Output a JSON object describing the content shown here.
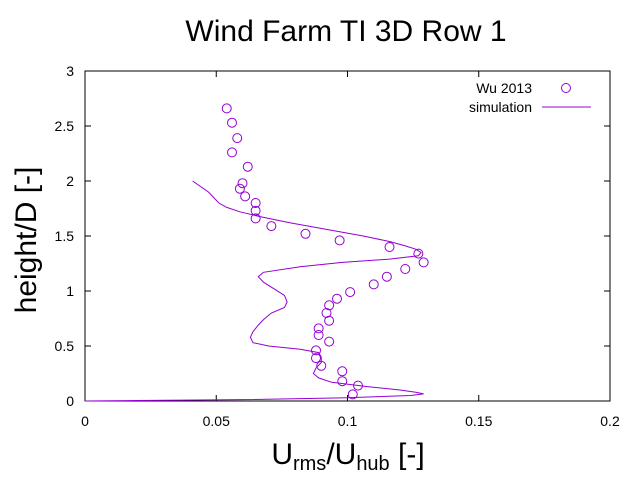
{
  "chart_data": {
    "type": "line",
    "title": "Wind Farm TI 3D Row 1",
    "xlabel": {
      "base1": "U",
      "sub1": "rms",
      "mid": "/U",
      "sub2": "hub",
      "tail": " [-]"
    },
    "ylabel": "height/D [-]",
    "xlim": [
      0,
      0.2
    ],
    "ylim": [
      0,
      3
    ],
    "xticks": [
      "0",
      "0.05",
      "0.1",
      "0.15",
      "0.2"
    ],
    "yticks": [
      "0",
      "0.5",
      "1",
      "1.5",
      "2",
      "2.5",
      "3"
    ],
    "grid": false,
    "legend_position": "top-right",
    "series": [
      {
        "name": "Wu 2013",
        "style": "points",
        "color": "#9400d3",
        "points": [
          [
            0.054,
            2.66
          ],
          [
            0.056,
            2.53
          ],
          [
            0.058,
            2.39
          ],
          [
            0.056,
            2.26
          ],
          [
            0.062,
            2.13
          ],
          [
            0.06,
            1.98
          ],
          [
            0.059,
            1.93
          ],
          [
            0.061,
            1.86
          ],
          [
            0.065,
            1.8
          ],
          [
            0.065,
            1.73
          ],
          [
            0.065,
            1.66
          ],
          [
            0.071,
            1.59
          ],
          [
            0.084,
            1.52
          ],
          [
            0.097,
            1.46
          ],
          [
            0.116,
            1.4
          ],
          [
            0.127,
            1.34
          ],
          [
            0.129,
            1.26
          ],
          [
            0.122,
            1.2
          ],
          [
            0.115,
            1.13
          ],
          [
            0.11,
            1.06
          ],
          [
            0.101,
            0.99
          ],
          [
            0.096,
            0.93
          ],
          [
            0.093,
            0.87
          ],
          [
            0.092,
            0.8
          ],
          [
            0.093,
            0.73
          ],
          [
            0.089,
            0.66
          ],
          [
            0.089,
            0.6
          ],
          [
            0.093,
            0.54
          ],
          [
            0.088,
            0.46
          ],
          [
            0.088,
            0.39
          ],
          [
            0.09,
            0.32
          ],
          [
            0.098,
            0.27
          ],
          [
            0.098,
            0.18
          ],
          [
            0.104,
            0.14
          ],
          [
            0.102,
            0.06
          ]
        ]
      },
      {
        "name": "simulation",
        "style": "line",
        "color": "#9400d3",
        "points": [
          [
            0.041,
            2.0
          ],
          [
            0.044,
            1.95
          ],
          [
            0.047,
            1.9
          ],
          [
            0.049,
            1.85
          ],
          [
            0.051,
            1.8
          ],
          [
            0.054,
            1.76
          ],
          [
            0.059,
            1.72
          ],
          [
            0.066,
            1.68
          ],
          [
            0.078,
            1.62
          ],
          [
            0.092,
            1.56
          ],
          [
            0.106,
            1.5
          ],
          [
            0.116,
            1.45
          ],
          [
            0.122,
            1.41
          ],
          [
            0.126,
            1.38
          ],
          [
            0.128,
            1.35
          ],
          [
            0.127,
            1.32
          ],
          [
            0.116,
            1.29
          ],
          [
            0.098,
            1.26
          ],
          [
            0.082,
            1.22
          ],
          [
            0.068,
            1.17
          ],
          [
            0.066,
            1.13
          ],
          [
            0.068,
            1.08
          ],
          [
            0.072,
            1.02
          ],
          [
            0.076,
            0.96
          ],
          [
            0.077,
            0.9
          ],
          [
            0.076,
            0.85
          ],
          [
            0.071,
            0.8
          ],
          [
            0.068,
            0.74
          ],
          [
            0.066,
            0.69
          ],
          [
            0.064,
            0.63
          ],
          [
            0.063,
            0.58
          ],
          [
            0.064,
            0.53
          ],
          [
            0.07,
            0.5
          ],
          [
            0.082,
            0.47
          ],
          [
            0.089,
            0.44
          ],
          [
            0.09,
            0.4
          ],
          [
            0.09,
            0.35
          ],
          [
            0.088,
            0.3
          ],
          [
            0.087,
            0.25
          ],
          [
            0.089,
            0.21
          ],
          [
            0.094,
            0.17
          ],
          [
            0.108,
            0.13
          ],
          [
            0.12,
            0.1
          ],
          [
            0.126,
            0.08
          ],
          [
            0.129,
            0.065
          ],
          [
            0.124,
            0.05
          ],
          [
            0.1,
            0.03
          ],
          [
            0.06,
            0.012
          ],
          [
            0.02,
            0.004
          ],
          [
            0.0,
            0.0
          ]
        ]
      }
    ]
  }
}
